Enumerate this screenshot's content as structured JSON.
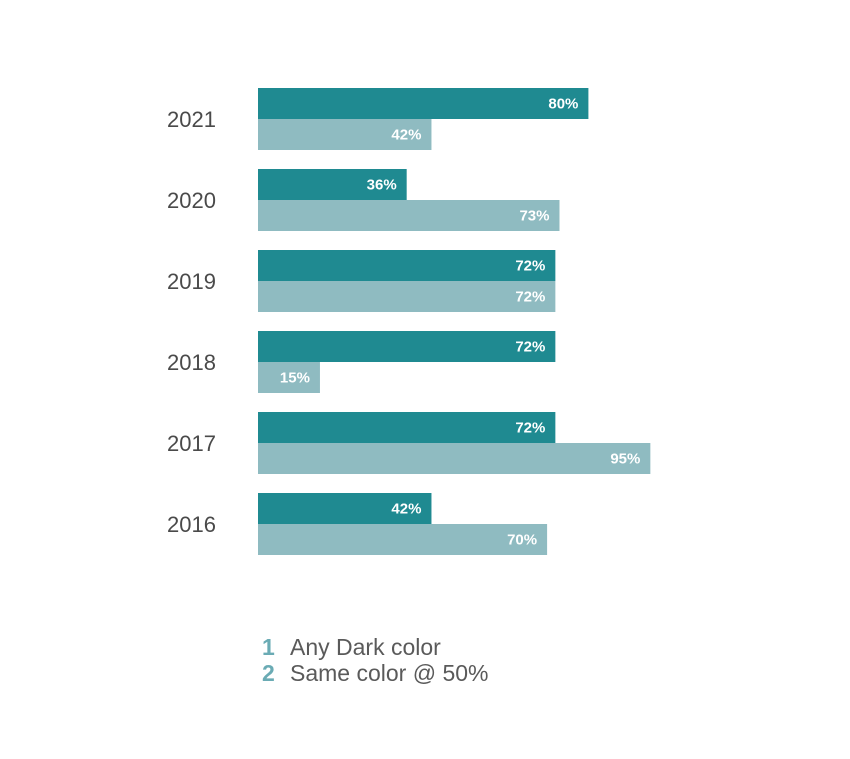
{
  "chart_data": {
    "type": "bar",
    "orientation": "horizontal",
    "categories": [
      "2021",
      "2020",
      "2019",
      "2018",
      "2017",
      "2016"
    ],
    "series": [
      {
        "name": "Any Dark color",
        "values": [
          80,
          36,
          72,
          72,
          72,
          42
        ],
        "labels": [
          "80%",
          "36%",
          "72%",
          "72%",
          "72%",
          "42%"
        ],
        "color": "#1f8a91"
      },
      {
        "name": "Same color @ 50%",
        "values": [
          42,
          73,
          72,
          15,
          95,
          70
        ],
        "labels": [
          "42%",
          "73%",
          "72%",
          "15%",
          "95%",
          "70%"
        ],
        "color": "#8fbbc1"
      }
    ],
    "xlim": [
      0,
      100
    ],
    "grid": false,
    "legend_position": "bottom"
  },
  "legend": {
    "items": [
      {
        "number": "1",
        "label": "Any Dark color",
        "number_color": "#6aabb4"
      },
      {
        "number": "2",
        "label": "Same color @ 50%",
        "number_color": "#6aabb4"
      }
    ]
  }
}
